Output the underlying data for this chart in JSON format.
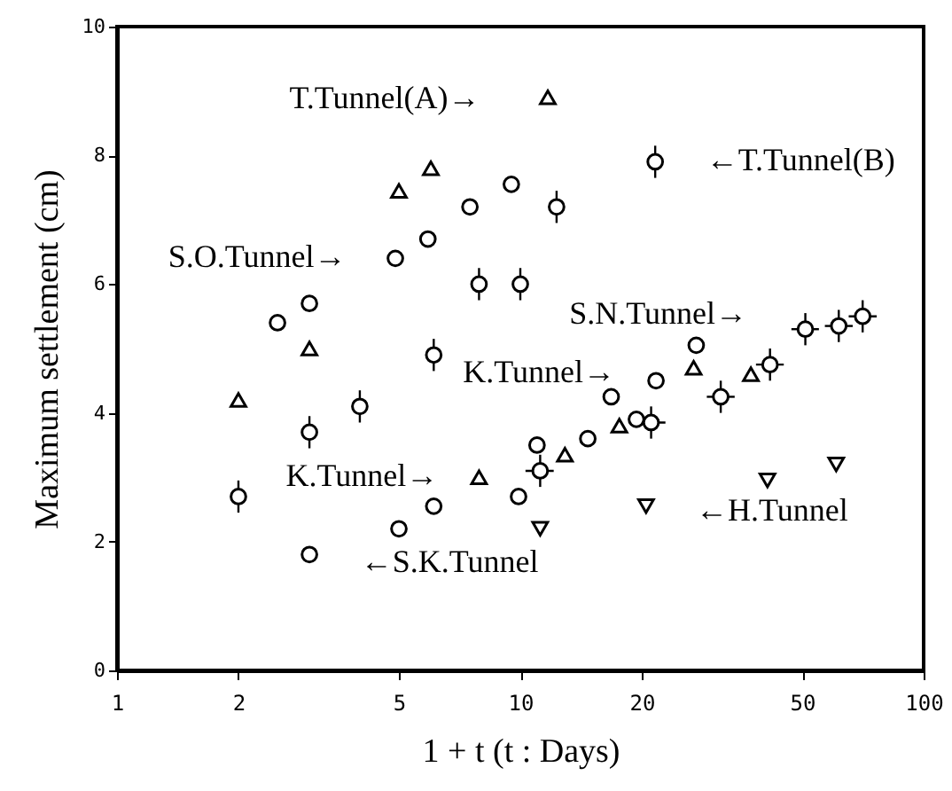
{
  "chart_data": {
    "type": "scatter",
    "xlabel": "1 + t   (t : Days)",
    "ylabel": "Maximum settlement (cm)",
    "log": "x",
    "xlim": [
      1,
      100
    ],
    "xticks": [
      1,
      2,
      5,
      10,
      20,
      50,
      100
    ],
    "ylim": [
      0,
      10
    ],
    "yticks": [
      0,
      2,
      4,
      6,
      8,
      10
    ],
    "grid": false,
    "series": [
      {
        "color": "#000000",
        "marker": "triangle",
        "x": [
          2,
          3,
          5,
          6,
          11.7
        ],
        "values": [
          4.2,
          5.0,
          7.45,
          7.8,
          8.9
        ]
      },
      {
        "color": "#000000",
        "marker": "circle",
        "x": [
          2,
          3,
          4,
          6.1,
          7.9,
          10,
          12.3,
          21.6
        ],
        "values": [
          2.7,
          3.7,
          4.1,
          4.9,
          6.0,
          6.0,
          7.2,
          7.9
        ],
        "errors": [
          0.25,
          0.25,
          0.25,
          0.25,
          0.25,
          0.25,
          0.25,
          0.25
        ]
      },
      {
        "color": "#000000",
        "marker": "circle",
        "x": [
          2.5,
          3,
          4.9,
          5.9,
          7.5,
          9.5
        ],
        "values": [
          5.4,
          5.7,
          6.4,
          6.7,
          7.2,
          7.55
        ]
      },
      {
        "color": "#000000",
        "marker": "circle",
        "x": [
          3,
          5,
          9.9,
          14.7,
          19.4
        ],
        "values": [
          1.8,
          2.2,
          2.7,
          3.6,
          3.9
        ]
      },
      {
        "color": "#000000",
        "marker": "circle",
        "x": [
          6.1,
          11,
          16.8,
          21.7,
          27.3
        ],
        "values": [
          2.55,
          3.5,
          4.25,
          4.5,
          5.05
        ]
      },
      {
        "color": "#000000",
        "marker": "triangle",
        "x": [
          7.9,
          12.9,
          17.6,
          26.9,
          37.3
        ],
        "values": [
          3.0,
          3.35,
          3.8,
          4.7,
          4.6
        ]
      },
      {
        "color": "#000000",
        "marker": "circle",
        "x": [
          11.2,
          21.1,
          31.4,
          41.6,
          50.9,
          61.6,
          70.6
        ],
        "values": [
          3.1,
          3.85,
          4.25,
          4.75,
          5.3,
          5.35,
          5.5
        ],
        "errors": [
          0.25,
          0.25,
          0.25,
          0.25,
          0.25,
          0.25,
          0.25
        ],
        "xerrors": [
          [
            10.3,
            12.1
          ],
          [
            19.5,
            22.9
          ],
          [
            29,
            34
          ],
          [
            38.4,
            45
          ],
          [
            47,
            55
          ],
          [
            56.9,
            66.7
          ],
          [
            65.2,
            76.5
          ]
        ]
      },
      {
        "color": "#000000",
        "marker": "triangle-down",
        "x": [
          11.2,
          20.5,
          41,
          60.7
        ],
        "values": [
          2.2,
          2.55,
          2.95,
          3.2
        ]
      }
    ],
    "annotations": [
      {
        "text": "T.Tunnel(A)→",
        "x": 11.7,
        "y": 8.9
      },
      {
        "text": "←T.Tunnel(B)",
        "x": 21.6,
        "y": 7.9
      },
      {
        "text": "S.O.Tunnel→",
        "x": 4.9,
        "y": 6.4
      },
      {
        "text": "S.N.Tunnel→",
        "x": 50.9,
        "y": 5.3
      },
      {
        "text": "K.Tunnel→",
        "x": 21.7,
        "y": 4.5
      },
      {
        "text": "K.Tunnel→",
        "x": 7.9,
        "y": 3.0
      },
      {
        "text": "←H.Tunnel",
        "x": 20.5,
        "y": 2.55
      },
      {
        "text": "←S.K.Tunnel",
        "x": 3,
        "y": 1.8
      }
    ]
  }
}
